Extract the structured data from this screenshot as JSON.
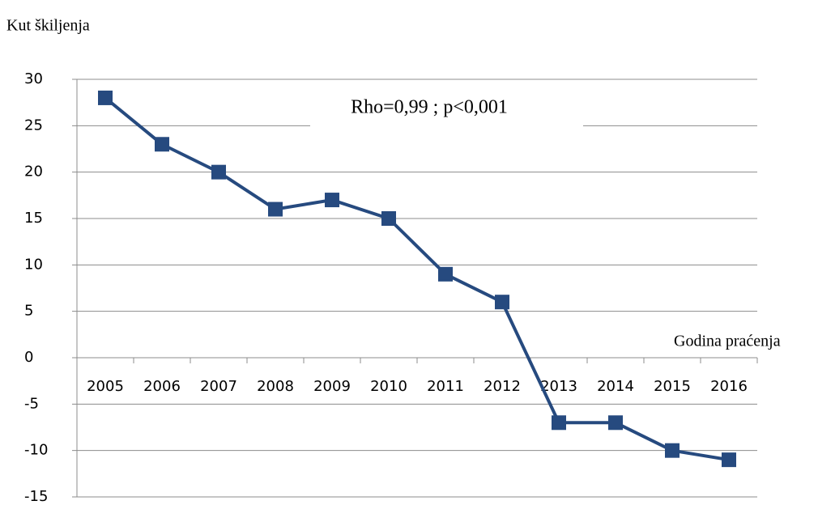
{
  "chart_data": {
    "type": "line",
    "y_label": "Kut škiljenja",
    "x_label": "Godina praćenja",
    "annotation": "Rho=0,99 ; p<0,001",
    "categories": [
      "2005",
      "2006",
      "2007",
      "2008",
      "2009",
      "2010",
      "2011",
      "2012",
      "2013",
      "2014",
      "2015",
      "2016"
    ],
    "values": [
      28,
      23,
      20,
      16,
      17,
      15,
      9,
      6,
      -7,
      -7,
      -10,
      -11
    ],
    "color": "#264a7f",
    "ylim": [
      -15,
      30
    ],
    "yticks": [
      -15,
      -10,
      -5,
      0,
      5,
      10,
      15,
      20,
      25,
      30
    ],
    "grid": true
  }
}
